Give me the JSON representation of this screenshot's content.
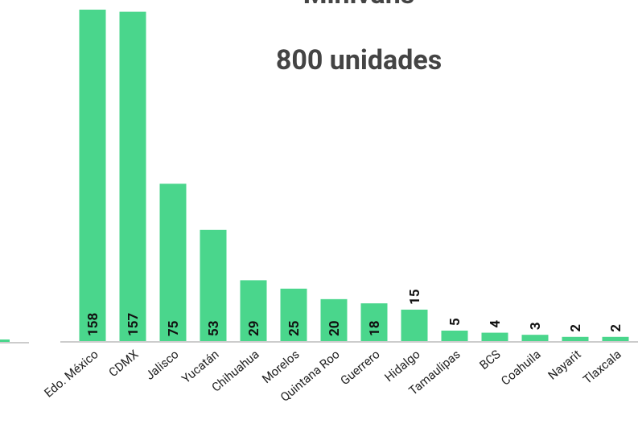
{
  "chart_data": {
    "type": "bar",
    "title": "Minivans",
    "subtitle": "800 unidades",
    "categories": [
      "Edo. México",
      "CDMX",
      "Jalisco",
      "Yucatán",
      "Chihuahua",
      "Morelos",
      "Quintana Roo",
      "Guerrero",
      "Hidalgo",
      "Tamaulipas",
      "BCS",
      "Coahuila",
      "Nayarit",
      "Tlaxcala"
    ],
    "values": [
      158,
      157,
      75,
      53,
      29,
      25,
      20,
      18,
      15,
      5,
      4,
      3,
      2,
      2
    ],
    "color": "#4ad68c"
  }
}
